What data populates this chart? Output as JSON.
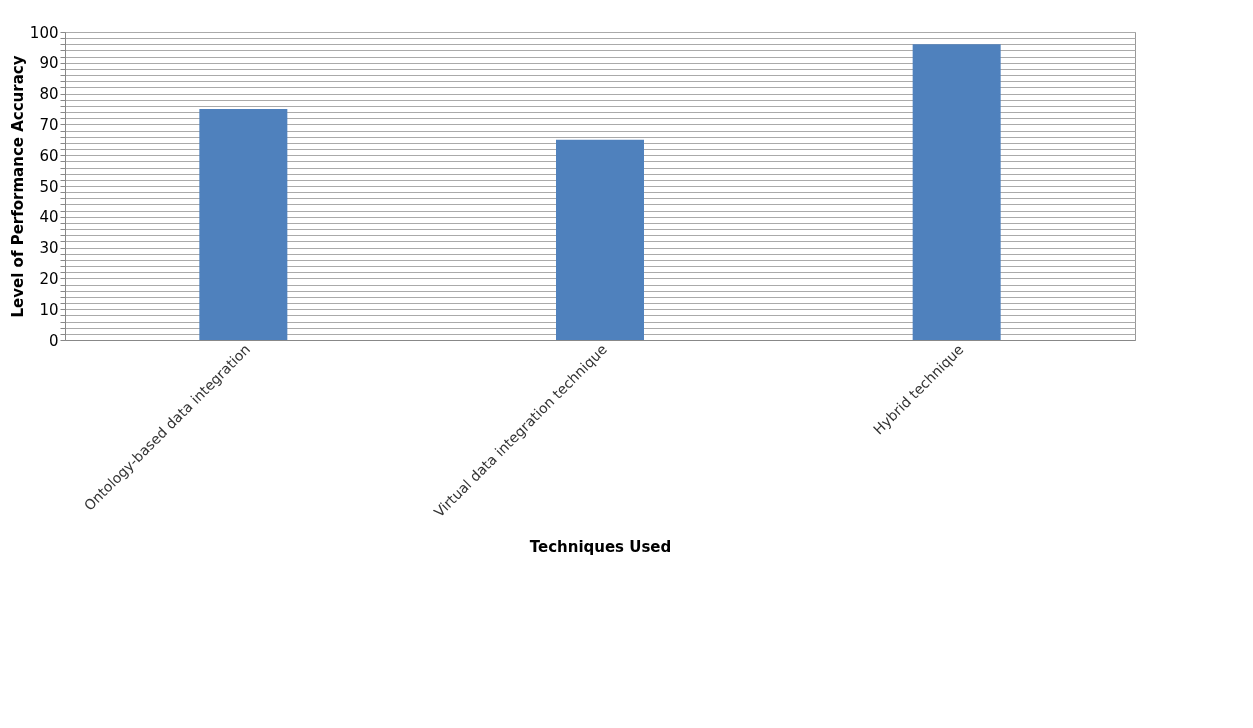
{
  "chart_data": {
    "type": "bar",
    "xlabel": "Techniques Used",
    "ylabel": "Level of Performance Accuracy",
    "categories": [
      "Ontology-based data integration",
      "Virtual data integration technique",
      "Hybrid technique"
    ],
    "values": [
      75,
      65,
      96
    ],
    "color": "#4f81bd",
    "ylim": [
      0,
      100
    ],
    "yticks": [
      0,
      {
        "value": 2,
        "label": null
      },
      {
        "value": 4,
        "label": null
      },
      {
        "value": 6,
        "label": null
      },
      {
        "value": 8,
        "label": null
      },
      10,
      {
        "value": 12,
        "label": null
      },
      {
        "value": 14,
        "label": null
      },
      {
        "value": 16,
        "label": null
      },
      {
        "value": 18,
        "label": null
      },
      20,
      {
        "value": 22,
        "label": null
      },
      {
        "value": 24,
        "label": null
      },
      {
        "value": 26,
        "label": null
      },
      {
        "value": 28,
        "label": null
      },
      30,
      {
        "value": 32,
        "label": null
      },
      {
        "value": 34,
        "label": null
      },
      {
        "value": 36,
        "label": null
      },
      {
        "value": 38,
        "label": null
      },
      40,
      {
        "value": 42,
        "label": null
      },
      {
        "value": 44,
        "label": null
      },
      {
        "value": 46,
        "label": null
      },
      {
        "value": 48,
        "label": null
      },
      50,
      {
        "value": 52,
        "label": null
      },
      {
        "value": 54,
        "label": null
      },
      {
        "value": 56,
        "label": null
      },
      {
        "value": 58,
        "label": null
      },
      60,
      {
        "value": 62,
        "label": null
      },
      {
        "value": 64,
        "label": null
      },
      {
        "value": 66,
        "label": null
      },
      {
        "value": 68,
        "label": null
      },
      70,
      {
        "value": 72,
        "label": null
      },
      {
        "value": 74,
        "label": null
      },
      {
        "value": 76,
        "label": null
      },
      {
        "value": 78,
        "label": null
      },
      80,
      {
        "value": 82,
        "label": null
      },
      {
        "value": 84,
        "label": null
      },
      {
        "value": 86,
        "label": null
      },
      {
        "value": 88,
        "label": null
      },
      90,
      {
        "value": 92,
        "label": null
      },
      {
        "value": 94,
        "label": null
      },
      {
        "value": 96,
        "label": null
      },
      {
        "value": 98,
        "label": null
      },
      100
    ],
    "grid": "y"
  }
}
